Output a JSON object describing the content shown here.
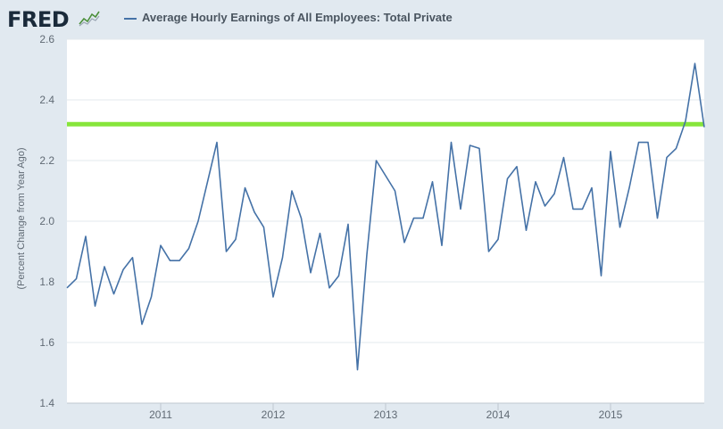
{
  "header": {
    "logo_text": "FRED",
    "legend_label": "Average Hourly Earnings of All Employees: Total Private"
  },
  "colors": {
    "series": "#4572a7",
    "reference_line": "#87e53b",
    "grid": "#e3e8ed",
    "plot_bg": "#ffffff",
    "page_bg": "#e1e9f0"
  },
  "chart_data": {
    "type": "line",
    "title": "",
    "xlabel": "",
    "ylabel": "(Percent Change from Year Ago)",
    "ylim": [
      1.4,
      2.6
    ],
    "yticks": [
      1.4,
      1.6,
      1.8,
      2.0,
      2.2,
      2.4,
      2.6
    ],
    "ytick_labels": [
      "1.4",
      "1.6",
      "1.8",
      "2.0",
      "2.2",
      "2.4",
      "2.6"
    ],
    "xlim": [
      "2010-03",
      "2015-11"
    ],
    "xtick_labels": [
      "2011",
      "2012",
      "2013",
      "2014",
      "2015"
    ],
    "xtick_positions": [
      "2011-01",
      "2012-01",
      "2013-01",
      "2014-01",
      "2015-01"
    ],
    "grid": "horizontal",
    "legend": "top",
    "reference_line": {
      "y": 2.32,
      "orientation": "horizontal"
    },
    "series": [
      {
        "name": "Average Hourly Earnings of All Employees: Total Private",
        "x": [
          "2010-03",
          "2010-04",
          "2010-05",
          "2010-06",
          "2010-07",
          "2010-08",
          "2010-09",
          "2010-10",
          "2010-11",
          "2010-12",
          "2011-01",
          "2011-02",
          "2011-03",
          "2011-04",
          "2011-05",
          "2011-06",
          "2011-07",
          "2011-08",
          "2011-09",
          "2011-10",
          "2011-11",
          "2011-12",
          "2012-01",
          "2012-02",
          "2012-03",
          "2012-04",
          "2012-05",
          "2012-06",
          "2012-07",
          "2012-08",
          "2012-09",
          "2012-10",
          "2012-11",
          "2012-12",
          "2013-01",
          "2013-02",
          "2013-03",
          "2013-04",
          "2013-05",
          "2013-06",
          "2013-07",
          "2013-08",
          "2013-09",
          "2013-10",
          "2013-11",
          "2013-12",
          "2014-01",
          "2014-02",
          "2014-03",
          "2014-04",
          "2014-05",
          "2014-06",
          "2014-07",
          "2014-08",
          "2014-09",
          "2014-10",
          "2014-11",
          "2014-12",
          "2015-01",
          "2015-02",
          "2015-03",
          "2015-04",
          "2015-05",
          "2015-06",
          "2015-07",
          "2015-08",
          "2015-09",
          "2015-10",
          "2015-11"
        ],
        "values": [
          1.78,
          1.81,
          1.95,
          1.72,
          1.85,
          1.76,
          1.84,
          1.88,
          1.66,
          1.75,
          1.92,
          1.87,
          1.87,
          1.91,
          2.0,
          2.13,
          2.26,
          1.9,
          1.94,
          2.11,
          2.03,
          1.98,
          1.75,
          1.88,
          2.1,
          2.01,
          1.83,
          1.96,
          1.78,
          1.82,
          1.99,
          1.51,
          1.89,
          2.2,
          2.15,
          2.1,
          1.93,
          2.01,
          2.01,
          2.13,
          1.92,
          2.26,
          2.04,
          2.25,
          2.24,
          1.9,
          1.94,
          2.14,
          2.18,
          1.97,
          2.13,
          2.05,
          2.09,
          2.21,
          2.04,
          2.04,
          2.11,
          1.82,
          2.23,
          1.98,
          2.11,
          2.26,
          2.26,
          2.01,
          2.21,
          2.24,
          2.33,
          2.52,
          2.31
        ]
      }
    ]
  }
}
